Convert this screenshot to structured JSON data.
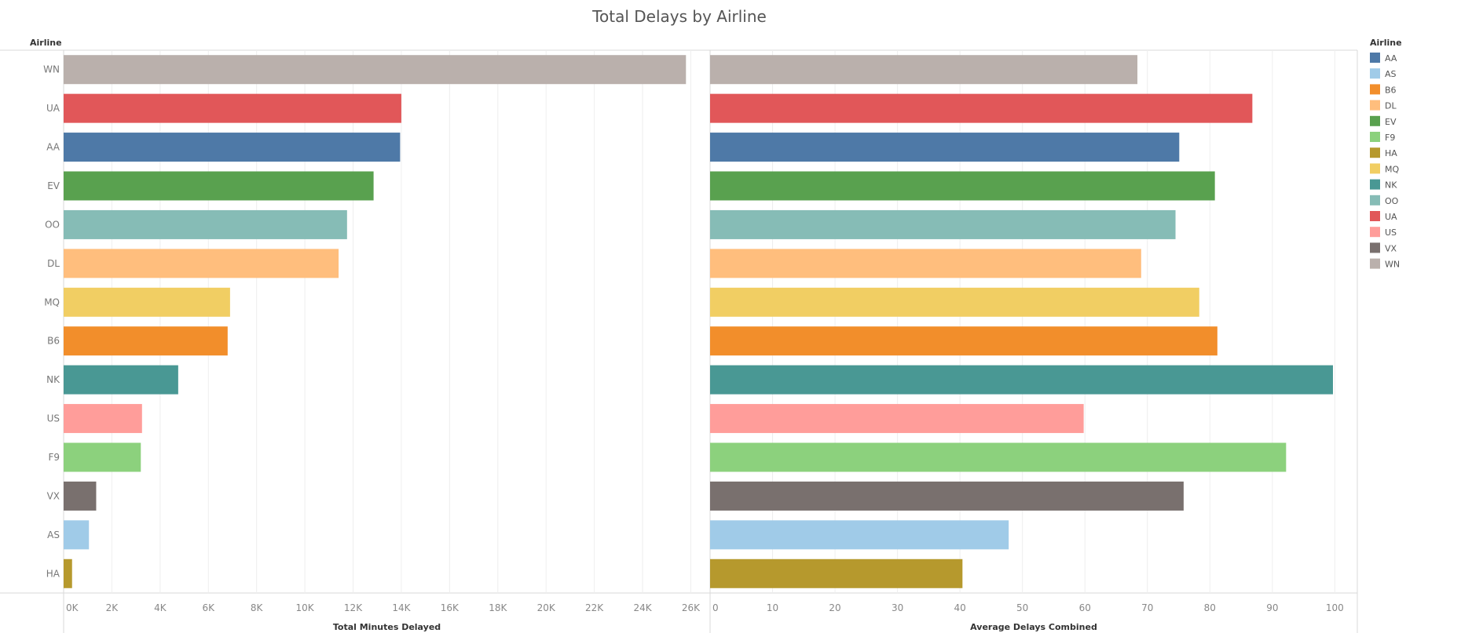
{
  "chart_data": {
    "type": "bar",
    "orientation": "horizontal",
    "title": "Total Delays by Airline",
    "row_header": "Airline",
    "categories": [
      "WN",
      "UA",
      "AA",
      "EV",
      "OO",
      "DL",
      "MQ",
      "B6",
      "NK",
      "US",
      "F9",
      "VX",
      "AS",
      "HA"
    ],
    "panels": [
      {
        "name": "total-minutes-delayed",
        "xlabel": "Total Minutes Delayed",
        "xlim": [
          0,
          26800
        ],
        "ticks": [
          0,
          2000,
          4000,
          6000,
          8000,
          10000,
          12000,
          14000,
          16000,
          18000,
          20000,
          22000,
          24000,
          26000
        ],
        "tick_labels": [
          "0K",
          "2K",
          "4K",
          "6K",
          "8K",
          "10K",
          "12K",
          "14K",
          "16K",
          "18K",
          "20K",
          "22K",
          "24K",
          "26K"
        ],
        "values": [
          25800,
          14000,
          13950,
          12850,
          11750,
          11400,
          6900,
          6800,
          4750,
          3250,
          3200,
          1350,
          1050,
          350
        ]
      },
      {
        "name": "average-delays-combined",
        "xlabel": "Average Delays Combined",
        "xlim": [
          0,
          103.6
        ],
        "ticks": [
          0,
          10,
          20,
          30,
          40,
          50,
          60,
          70,
          80,
          90,
          100
        ],
        "tick_labels": [
          "0",
          "10",
          "20",
          "30",
          "40",
          "50",
          "60",
          "70",
          "80",
          "90",
          "100"
        ],
        "values": [
          68.4,
          86.8,
          75.1,
          80.8,
          74.5,
          69.0,
          78.3,
          81.2,
          99.7,
          59.8,
          92.2,
          75.8,
          47.8,
          40.4
        ]
      }
    ],
    "grid": true,
    "legend": {
      "title": "Airline",
      "placement": "right",
      "items": [
        "AA",
        "AS",
        "B6",
        "DL",
        "EV",
        "F9",
        "HA",
        "MQ",
        "NK",
        "OO",
        "UA",
        "US",
        "VX",
        "WN"
      ]
    },
    "colors": {
      "AA": "#4e79a7",
      "AS": "#a0cbe8",
      "B6": "#f28e2b",
      "DL": "#ffbe7d",
      "EV": "#59a14f",
      "F9": "#8cd17d",
      "HA": "#b6992d",
      "MQ": "#f1ce63",
      "NK": "#499894",
      "OO": "#86bcb6",
      "UA": "#e15759",
      "US": "#ff9d9a",
      "VX": "#79706e",
      "WN": "#bab0ac"
    }
  }
}
